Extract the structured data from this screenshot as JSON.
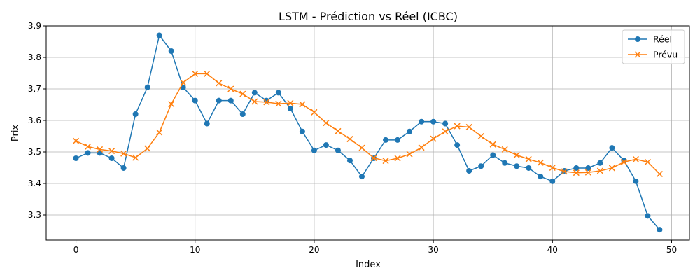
{
  "chart_data": {
    "type": "line",
    "title": "LSTM - Prédiction vs Réel (ICBC)",
    "xlabel": "Index",
    "ylabel": "Prix",
    "xlim": [
      -2.5,
      51.5
    ],
    "ylim": [
      3.22,
      3.9
    ],
    "xticks": [
      0,
      10,
      20,
      30,
      40,
      50
    ],
    "yticks": [
      3.3,
      3.4,
      3.5,
      3.6,
      3.7,
      3.8,
      3.9
    ],
    "grid": true,
    "legend_position": "top-right",
    "x": [
      0,
      1,
      2,
      3,
      4,
      5,
      6,
      7,
      8,
      9,
      10,
      11,
      12,
      13,
      14,
      15,
      16,
      17,
      18,
      19,
      20,
      21,
      22,
      23,
      24,
      25,
      26,
      27,
      28,
      29,
      30,
      31,
      32,
      33,
      34,
      35,
      36,
      37,
      38,
      39,
      40,
      41,
      42,
      43,
      44,
      45,
      46,
      47,
      48,
      49
    ],
    "series": [
      {
        "name": "Réel",
        "color": "#1f77b4",
        "marker": "circle",
        "values": [
          3.48,
          3.497,
          3.497,
          3.48,
          3.449,
          3.62,
          3.705,
          3.87,
          3.82,
          3.705,
          3.663,
          3.59,
          3.663,
          3.663,
          3.62,
          3.688,
          3.663,
          3.688,
          3.638,
          3.565,
          3.505,
          3.522,
          3.505,
          3.473,
          3.422,
          3.48,
          3.538,
          3.538,
          3.565,
          3.596,
          3.596,
          3.59,
          3.522,
          3.44,
          3.455,
          3.49,
          3.465,
          3.455,
          3.449,
          3.422,
          3.407,
          3.44,
          3.449,
          3.449,
          3.465,
          3.513,
          3.473,
          3.407,
          3.297,
          3.253
        ]
      },
      {
        "name": "Prévu",
        "color": "#ff7f0e",
        "marker": "x",
        "values": [
          3.535,
          3.517,
          3.508,
          3.503,
          3.495,
          3.482,
          3.511,
          3.562,
          3.652,
          3.72,
          3.748,
          3.748,
          3.718,
          3.7,
          3.684,
          3.66,
          3.658,
          3.653,
          3.655,
          3.651,
          3.626,
          3.592,
          3.566,
          3.541,
          3.513,
          3.481,
          3.472,
          3.48,
          3.493,
          3.514,
          3.542,
          3.565,
          3.582,
          3.579,
          3.55,
          3.524,
          3.508,
          3.49,
          3.477,
          3.466,
          3.45,
          3.438,
          3.434,
          3.435,
          3.44,
          3.449,
          3.468,
          3.477,
          3.468,
          3.43
        ]
      }
    ]
  }
}
